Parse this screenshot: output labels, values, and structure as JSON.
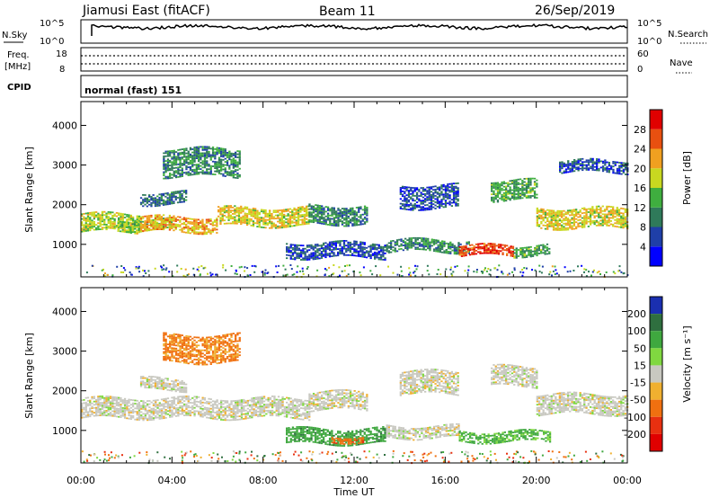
{
  "header": {
    "station": "Jiamusi East (fitACF)",
    "beam": "Beam 11",
    "date": "26/Sep/2019"
  },
  "noise_panel": {
    "left_label": "N.Sky",
    "right_label": "N.Search",
    "left_ticks": [
      "10^5",
      "10^0"
    ],
    "right_ticks": [
      "10^5",
      "10^0"
    ]
  },
  "freq_panel": {
    "left_label_1": "Freq.",
    "left_label_2": "[MHz]",
    "right_label": "Nave",
    "left_ticks": [
      "18",
      "8"
    ],
    "right_ticks": [
      "60",
      "0"
    ]
  },
  "cpid": {
    "label": "CPID",
    "value": "normal (fast) 151"
  },
  "power_panel": {
    "ylabel": "Slant Range [km]",
    "yticks": [
      "1000",
      "2000",
      "3000",
      "4000"
    ],
    "colorbar_label": "Power [dB]",
    "colorbar_ticks": [
      "4",
      "8",
      "12",
      "16",
      "20",
      "24",
      "28"
    ],
    "colors": [
      "#0000ff",
      "#1f3fa8",
      "#2f7a5a",
      "#3fae3f",
      "#c8d820",
      "#f0a020",
      "#e85010",
      "#e00000"
    ]
  },
  "velocity_panel": {
    "ylabel": "Slant Range [km]",
    "yticks": [
      "1000",
      "2000",
      "3000",
      "4000"
    ],
    "colorbar_label": "Velocity [m s⁻¹]",
    "colorbar_ticks": [
      "200",
      "100",
      "50",
      "15",
      "-15",
      "-50",
      "-100",
      "-200"
    ],
    "colors": [
      "#1a2fb0",
      "#2f6f3f",
      "#3fa83f",
      "#80d840",
      "#c8c8c0",
      "#f0b030",
      "#f07010",
      "#e83010",
      "#e00000"
    ]
  },
  "x_axis": {
    "xlabel": "Time UT",
    "ticks": [
      "00:00",
      "04:00",
      "08:00",
      "12:00",
      "16:00",
      "20:00",
      "00:00"
    ]
  },
  "chart_data": [
    {
      "type": "heatmap",
      "name": "Power",
      "xlabel": "",
      "ylabel": "Slant Range [km]",
      "xlim": [
        0,
        24
      ],
      "ylim": [
        180,
        4600
      ],
      "zlim": [
        0,
        30
      ],
      "units": "dB",
      "bands": [
        {
          "t0": 0.0,
          "t1": 2.6,
          "r0": 1300,
          "r1": 1750,
          "z": 16
        },
        {
          "t0": 1.6,
          "t1": 4.0,
          "r0": 1350,
          "r1": 1600,
          "z": 14
        },
        {
          "t0": 2.6,
          "t1": 6.0,
          "r0": 1300,
          "r1": 1700,
          "z": 20
        },
        {
          "t0": 6.0,
          "t1": 10.0,
          "r0": 1450,
          "r1": 1900,
          "z": 18
        },
        {
          "t0": 10.0,
          "t1": 12.6,
          "r0": 1500,
          "r1": 1950,
          "z": 10
        },
        {
          "t0": 3.6,
          "t1": 7.0,
          "r0": 2700,
          "r1": 3400,
          "z": 10
        },
        {
          "t0": 2.6,
          "t1": 4.6,
          "r0": 2000,
          "r1": 2300,
          "z": 8
        },
        {
          "t0": 9.0,
          "t1": 13.4,
          "r0": 650,
          "r1": 1050,
          "z": 6
        },
        {
          "t0": 13.4,
          "t1": 17.0,
          "r0": 800,
          "r1": 1100,
          "z": 10
        },
        {
          "t0": 16.6,
          "t1": 19.0,
          "r0": 700,
          "r1": 950,
          "z": 26
        },
        {
          "t0": 19.0,
          "t1": 20.6,
          "r0": 700,
          "r1": 950,
          "z": 12
        },
        {
          "t0": 14.0,
          "t1": 16.6,
          "r0": 1900,
          "r1": 2500,
          "z": 6
        },
        {
          "t0": 18.0,
          "t1": 20.0,
          "r0": 2100,
          "r1": 2600,
          "z": 12
        },
        {
          "t0": 20.0,
          "t1": 24.0,
          "r0": 1400,
          "r1": 1900,
          "z": 18
        },
        {
          "t0": 21.0,
          "t1": 24.0,
          "r0": 2800,
          "r1": 3100,
          "z": 6
        }
      ]
    },
    {
      "type": "heatmap",
      "name": "Velocity",
      "xlabel": "Time UT",
      "ylabel": "Slant Range [km]",
      "xlim": [
        0,
        24
      ],
      "ylim": [
        180,
        4600
      ],
      "zlim": [
        -200,
        200
      ],
      "units": "m s-1",
      "bands": [
        {
          "t0": 0.0,
          "t1": 10.0,
          "r0": 1300,
          "r1": 1800,
          "z": 0
        },
        {
          "t0": 10.0,
          "t1": 12.6,
          "r0": 1500,
          "r1": 1950,
          "z": 0
        },
        {
          "t0": 3.6,
          "t1": 7.0,
          "r0": 2700,
          "r1": 3400,
          "z": -40
        },
        {
          "t0": 2.6,
          "t1": 4.6,
          "r0": 2000,
          "r1": 2300,
          "z": 0
        },
        {
          "t0": 9.0,
          "t1": 13.4,
          "r0": 650,
          "r1": 1050,
          "z": 60
        },
        {
          "t0": 13.4,
          "t1": 16.6,
          "r0": 800,
          "r1": 1100,
          "z": 0
        },
        {
          "t0": 16.6,
          "t1": 20.6,
          "r0": 700,
          "r1": 950,
          "z": 40
        },
        {
          "t0": 14.0,
          "t1": 16.6,
          "r0": 1900,
          "r1": 2500,
          "z": 0
        },
        {
          "t0": 18.0,
          "t1": 20.0,
          "r0": 2100,
          "r1": 2600,
          "z": 0
        },
        {
          "t0": 20.0,
          "t1": 24.0,
          "r0": 1400,
          "r1": 1900,
          "z": 0
        },
        {
          "t0": 11.0,
          "t1": 12.4,
          "r0": 700,
          "r1": 850,
          "z": -60
        }
      ]
    }
  ]
}
